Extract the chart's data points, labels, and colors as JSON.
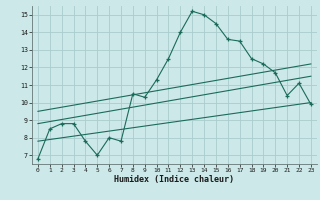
{
  "xlabel": "Humidex (Indice chaleur)",
  "background_color": "#cce8e8",
  "grid_color": "#aacccc",
  "line_color": "#1a6b5a",
  "xlim": [
    -0.5,
    23.5
  ],
  "ylim": [
    6.5,
    15.5
  ],
  "xticks": [
    0,
    1,
    2,
    3,
    4,
    5,
    6,
    7,
    8,
    9,
    10,
    11,
    12,
    13,
    14,
    15,
    16,
    17,
    18,
    19,
    20,
    21,
    22,
    23
  ],
  "yticks": [
    7,
    8,
    9,
    10,
    11,
    12,
    13,
    14,
    15
  ],
  "main_line_x": [
    0,
    1,
    2,
    3,
    4,
    5,
    6,
    7,
    8,
    9,
    10,
    11,
    12,
    13,
    14,
    15,
    16,
    17,
    18,
    19,
    20,
    21,
    22,
    23
  ],
  "main_line_y": [
    6.8,
    8.5,
    8.8,
    8.8,
    7.8,
    7.0,
    8.0,
    7.8,
    10.5,
    10.3,
    11.3,
    12.5,
    14.0,
    15.2,
    15.0,
    14.5,
    13.6,
    13.5,
    12.5,
    12.2,
    11.7,
    10.4,
    11.1,
    9.9
  ],
  "line2_x": [
    0,
    23
  ],
  "line2_y": [
    7.8,
    10.0
  ],
  "line3_x": [
    0,
    23
  ],
  "line3_y": [
    8.8,
    11.5
  ],
  "line4_x": [
    0,
    23
  ],
  "line4_y": [
    9.5,
    12.2
  ]
}
